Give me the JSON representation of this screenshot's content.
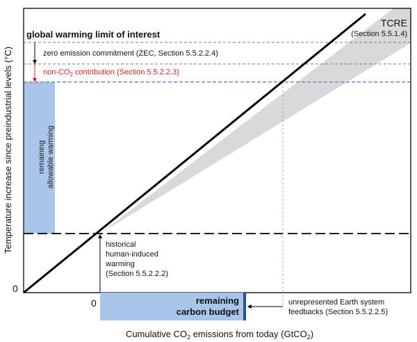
{
  "yaxis_label": "Temperature increase since preindustrial levels (°C)",
  "xaxis": {
    "prefix": "Cumulative CO",
    "sub": "2",
    "middle": " emissions from today (GtCO",
    "sub2": "2",
    "suffix": ")"
  },
  "y_origin": "0",
  "x_origin": "0",
  "tcre": {
    "title": "TCRE",
    "section": "(Section 5.5.1.4)"
  },
  "global_limit": "global warming limit of interest",
  "zec": "zero emission commitment (ZEC, Section 5.5.2.2.4)",
  "nonco2": {
    "prefix": "non-CO",
    "sub": "2",
    "suffix": " contribution (Section 5.5.2.2.3)"
  },
  "remaining_warming": {
    "line1": "remaining",
    "line2": "allowable warming"
  },
  "historical": {
    "line1": "historical",
    "line2": "human-induced",
    "line3": "warming",
    "line4": "(Section 5.5.2.2.2)"
  },
  "remaining_budget": {
    "line1": "remaining",
    "line2": "carbon budget"
  },
  "unrepresented": {
    "line1": "unrepresented Earth system",
    "line2": "feedbacks (Section 5.5.2.2.5)"
  },
  "colors": {
    "accent_blue": "#a9c6ea",
    "dark_blue": "#2a4f93",
    "dashed_blue": "#4a78b3",
    "red": "#cc2222",
    "grey_cone": "#d9d9d9"
  }
}
